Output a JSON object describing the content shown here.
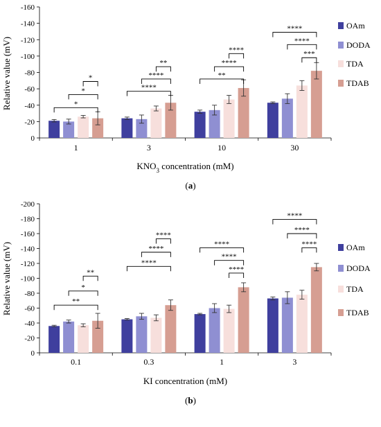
{
  "figure": {
    "panels": [
      {
        "caption_prefix": "(",
        "caption_letter": "a",
        "caption_suffix": ")"
      },
      {
        "caption_prefix": "(",
        "caption_letter": "b",
        "caption_suffix": ")"
      }
    ]
  },
  "chart_data": [
    {
      "type": "bar",
      "panel": "a",
      "title": "",
      "ylabel": "Relative value (mV)",
      "xlabel_parts": [
        "KNO",
        "3",
        " concentration (mM)"
      ],
      "categories": [
        "1",
        "3",
        "10",
        "30"
      ],
      "ylim": [
        0,
        -160
      ],
      "yticks": [
        0,
        -20,
        -40,
        -60,
        -80,
        -100,
        -120,
        -140,
        -160
      ],
      "ytick_labels": [
        "0",
        "-20",
        "-40",
        "-60",
        "-80",
        "-100",
        "-120",
        "-140",
        "-160"
      ],
      "grid": false,
      "legend_position": "right",
      "series": [
        {
          "name": "OAm",
          "color": "#3f3f9e",
          "values": [
            -21,
            -24,
            -32,
            -43
          ],
          "errors": [
            1.5,
            1.5,
            2,
            1
          ]
        },
        {
          "name": "DODA",
          "color": "#8f8fd2",
          "values": [
            -20,
            -23,
            -34,
            -48
          ],
          "errors": [
            3,
            5,
            6,
            6
          ]
        },
        {
          "name": "TDA",
          "color": "#f7dfdc",
          "values": [
            -26,
            -36,
            -47,
            -64
          ],
          "errors": [
            1.5,
            3,
            5,
            6
          ]
        },
        {
          "name": "TDAB",
          "color": "#d69e92",
          "values": [
            -24,
            -43,
            -61,
            -82
          ],
          "errors": [
            8,
            9,
            10,
            10
          ]
        }
      ],
      "significance": [
        {
          "category": "1",
          "from_series": 0,
          "to_series": 3,
          "label": "*",
          "level": -37
        },
        {
          "category": "1",
          "from_series": 1,
          "to_series": 3,
          "label": "*",
          "level": -53
        },
        {
          "category": "1",
          "from_series": 2,
          "to_series": 3,
          "label": "*",
          "level": -69
        },
        {
          "category": "3",
          "from_series": 0,
          "to_series": 3,
          "label": "****",
          "level": -57
        },
        {
          "category": "3",
          "from_series": 1,
          "to_series": 3,
          "label": "****",
          "level": -72
        },
        {
          "category": "3",
          "from_series": 2,
          "to_series": 3,
          "label": "**",
          "level": -87
        },
        {
          "category": "10",
          "from_series": 0,
          "to_series": 3,
          "label": "**",
          "level": -72
        },
        {
          "category": "10",
          "from_series": 1,
          "to_series": 3,
          "label": "****",
          "level": -87
        },
        {
          "category": "10",
          "from_series": 2,
          "to_series": 3,
          "label": "****",
          "level": -103
        },
        {
          "category": "30",
          "from_series": 0,
          "to_series": 3,
          "label": "****",
          "level": -129
        },
        {
          "category": "30",
          "from_series": 1,
          "to_series": 3,
          "label": "****",
          "level": -114
        },
        {
          "category": "30",
          "from_series": 2,
          "to_series": 3,
          "label": "***",
          "level": -98
        }
      ]
    },
    {
      "type": "bar",
      "panel": "b",
      "title": "",
      "ylabel": "Relative value (mV)",
      "xlabel_parts": [
        "KI concentration (mM)"
      ],
      "categories": [
        "0.1",
        "0.3",
        "1",
        "3"
      ],
      "ylim": [
        0,
        -200
      ],
      "yticks": [
        0,
        -20,
        -40,
        -60,
        -80,
        -100,
        -120,
        -140,
        -160,
        -180,
        -200
      ],
      "ytick_labels": [
        "0",
        "-20",
        "-40",
        "-60",
        "-80",
        "-100",
        "-120",
        "-140",
        "-160",
        "-180",
        "-200"
      ],
      "grid": false,
      "legend_position": "right",
      "series": [
        {
          "name": "OAm",
          "color": "#3f3f9e",
          "values": [
            -36,
            -45,
            -52,
            -73
          ],
          "errors": [
            1,
            1,
            1,
            2
          ]
        },
        {
          "name": "DODA",
          "color": "#8f8fd2",
          "values": [
            -42,
            -49,
            -60,
            -74
          ],
          "errors": [
            2,
            4,
            6,
            8
          ]
        },
        {
          "name": "TDA",
          "color": "#f7dfdc",
          "values": [
            -37,
            -47,
            -59,
            -78
          ],
          "errors": [
            2,
            4,
            5,
            6
          ]
        },
        {
          "name": "TDAB",
          "color": "#d69e92",
          "values": [
            -43,
            -64,
            -88,
            -115
          ],
          "errors": [
            10,
            7,
            6,
            5
          ]
        }
      ],
      "significance": [
        {
          "category": "0.1",
          "from_series": 0,
          "to_series": 3,
          "label": "**",
          "level": -64
        },
        {
          "category": "0.1",
          "from_series": 1,
          "to_series": 3,
          "label": "*",
          "level": -83
        },
        {
          "category": "0.1",
          "from_series": 2,
          "to_series": 3,
          "label": "**",
          "level": -103
        },
        {
          "category": "0.3",
          "from_series": 0,
          "to_series": 3,
          "label": "****",
          "level": -116
        },
        {
          "category": "0.3",
          "from_series": 1,
          "to_series": 3,
          "label": "****",
          "level": -135
        },
        {
          "category": "0.3",
          "from_series": 2,
          "to_series": 3,
          "label": "****",
          "level": -153
        },
        {
          "category": "1",
          "from_series": 0,
          "to_series": 3,
          "label": "****",
          "level": -141
        },
        {
          "category": "1",
          "from_series": 1,
          "to_series": 3,
          "label": "****",
          "level": -124
        },
        {
          "category": "1",
          "from_series": 2,
          "to_series": 3,
          "label": "****",
          "level": -107
        },
        {
          "category": "3",
          "from_series": 0,
          "to_series": 3,
          "label": "****",
          "level": -179
        },
        {
          "category": "3",
          "from_series": 1,
          "to_series": 3,
          "label": "****",
          "level": -160
        },
        {
          "category": "3",
          "from_series": 2,
          "to_series": 3,
          "label": "****",
          "level": -141
        }
      ]
    }
  ]
}
